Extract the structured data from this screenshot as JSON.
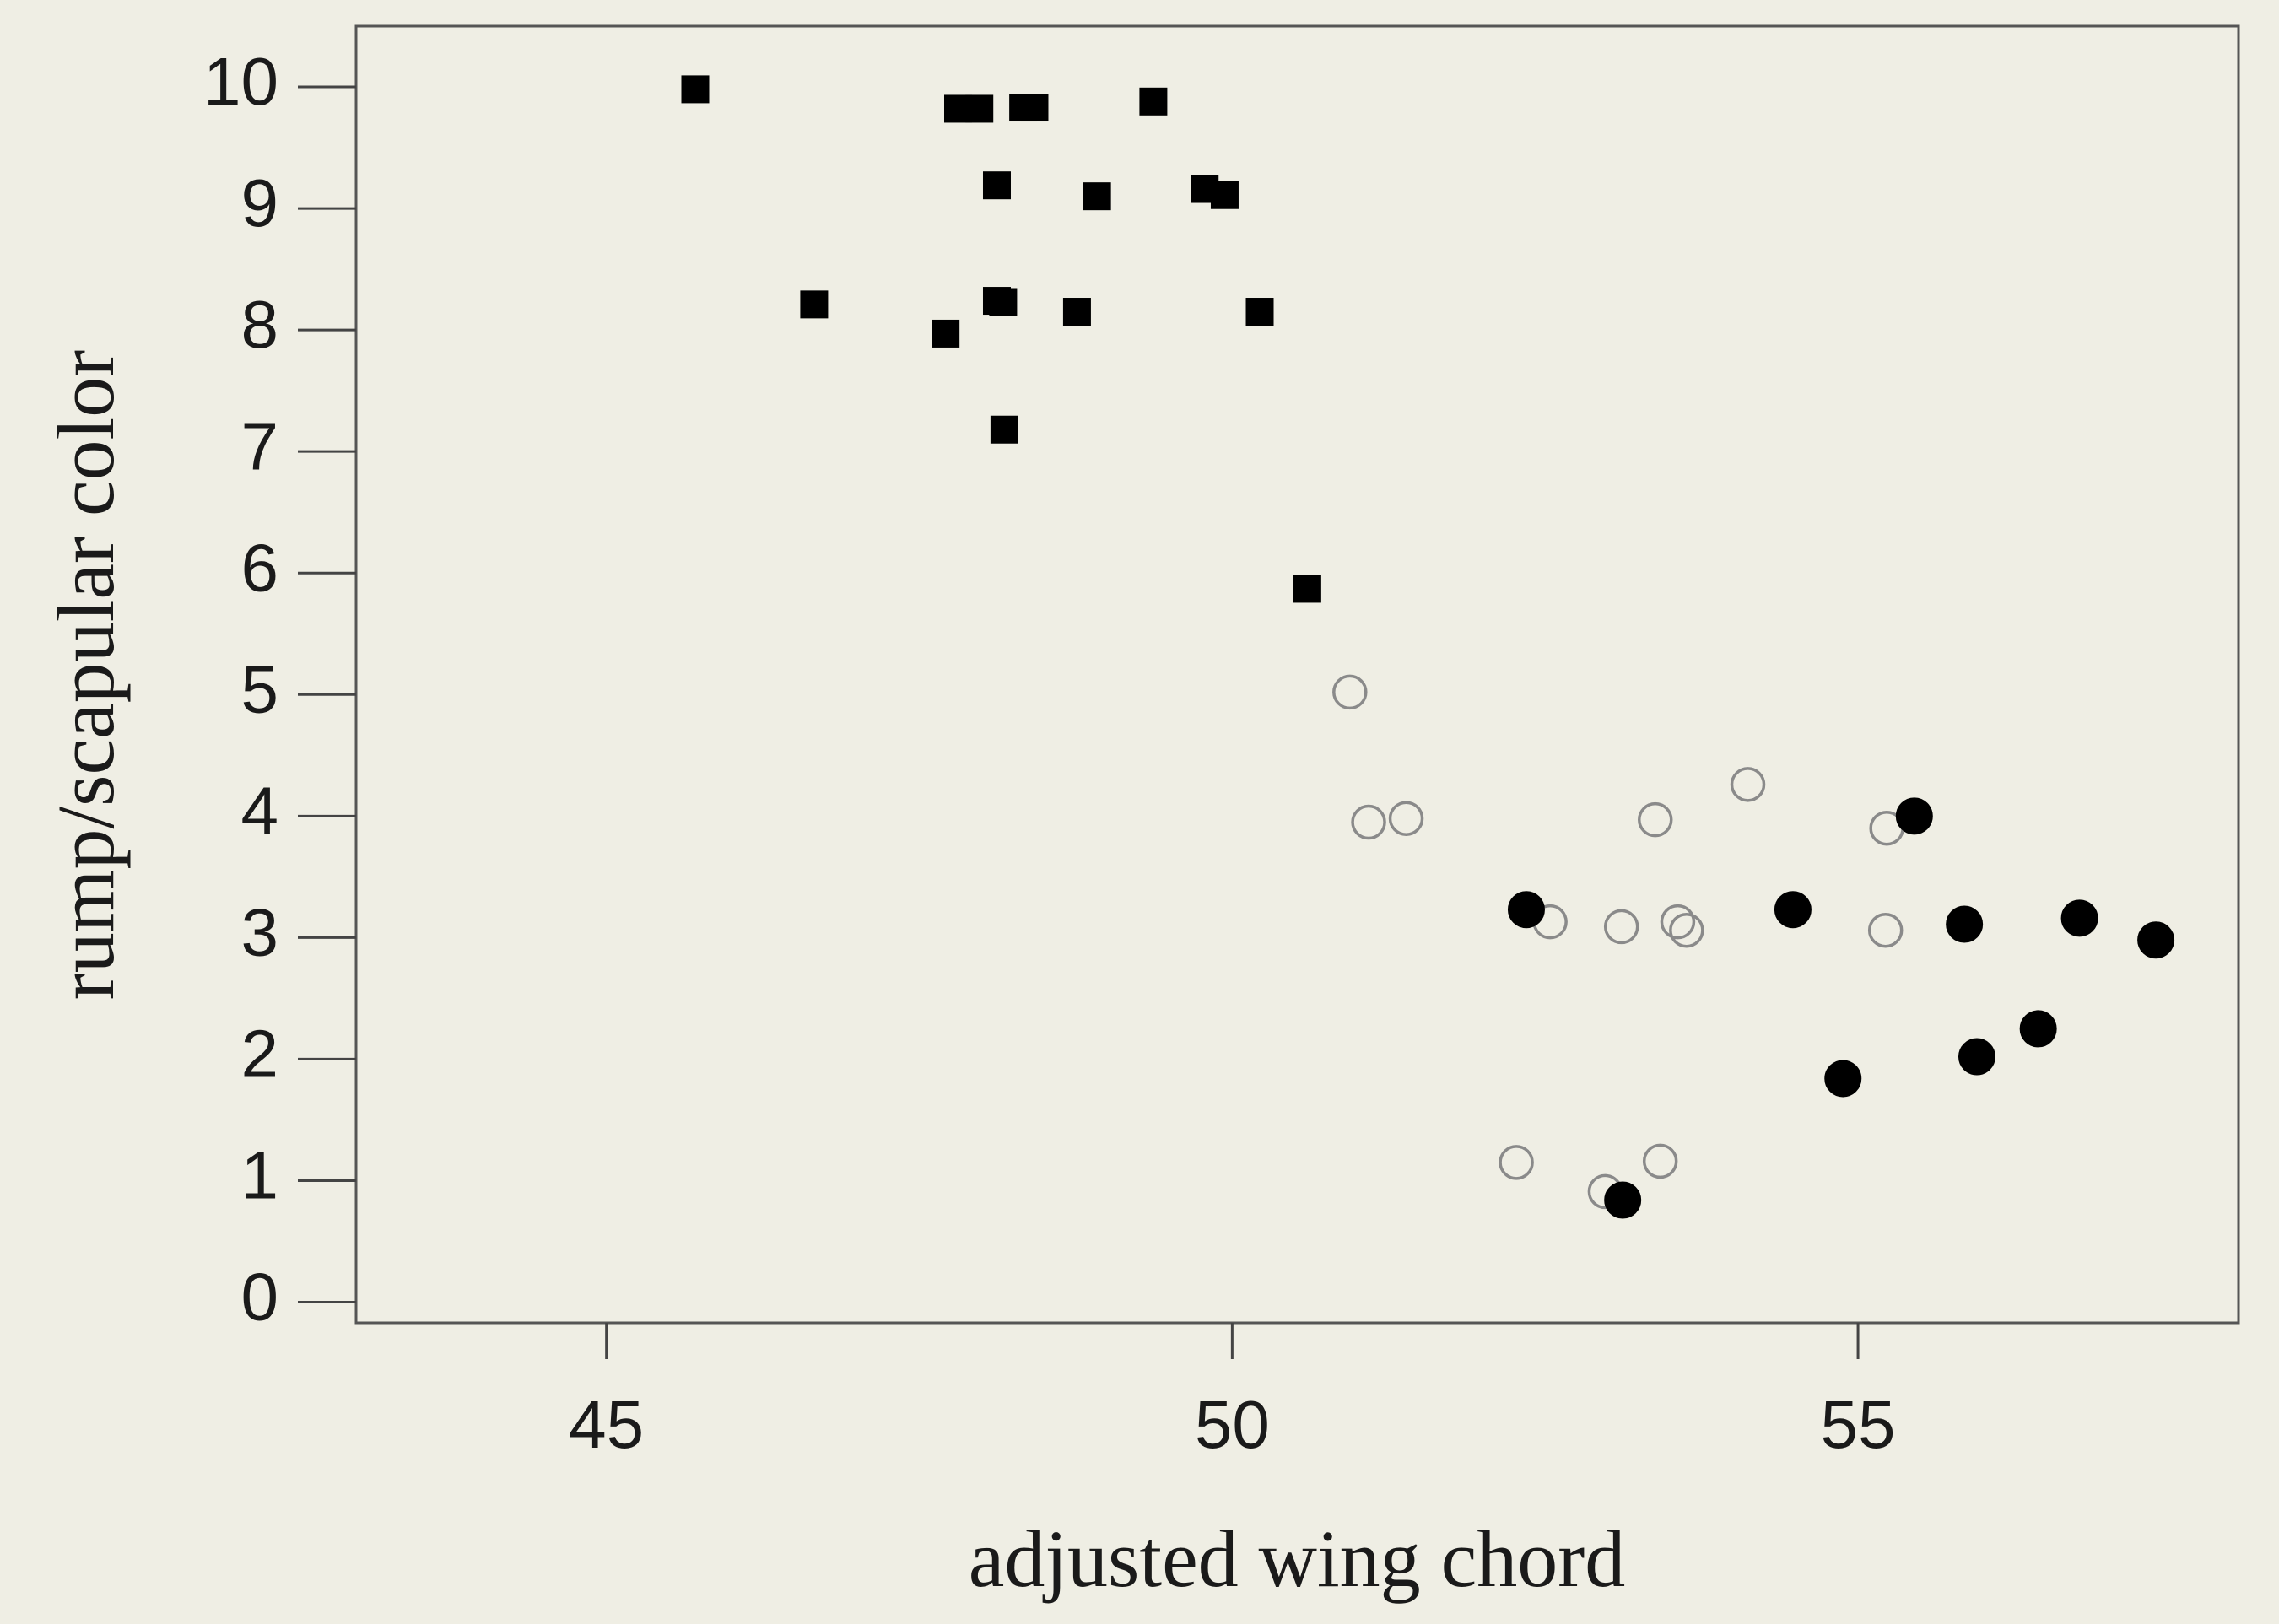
{
  "chart_data": {
    "type": "scatter",
    "xlabel": "adjusted wing chord",
    "ylabel": "rump/scapular color",
    "xlim": [
      43,
      58.04
    ],
    "ylim": [
      -0.17,
      10.5
    ],
    "xticks": [
      45,
      50,
      55
    ],
    "yticks": [
      0,
      1,
      2,
      3,
      4,
      5,
      6,
      7,
      8,
      9,
      10
    ],
    "series": [
      {
        "marker": "square",
        "color": "#000000",
        "filled": true,
        "x": [
          45.71,
          46.66,
          47.71,
          47.81,
          47.98,
          48.12,
          48.12,
          48.17,
          48.18,
          48.33,
          48.42,
          48.76,
          48.92,
          49.37,
          49.78,
          49.94,
          50.22,
          50.6
        ],
        "values": [
          9.98,
          8.21,
          7.97,
          9.82,
          9.82,
          9.19,
          8.24,
          8.23,
          7.18,
          9.83,
          9.83,
          8.15,
          9.1,
          9.88,
          9.16,
          9.11,
          8.15,
          5.87
        ]
      },
      {
        "marker": "circle",
        "color": "#8a8a8a",
        "filled": false,
        "x": [
          50.94,
          51.09,
          51.39,
          52.27,
          52.54,
          52.98,
          53.11,
          53.38,
          53.42,
          53.56,
          53.63,
          54.12,
          55.23,
          55.22
        ],
        "values": [
          5.02,
          3.95,
          3.98,
          1.15,
          3.13,
          0.91,
          3.09,
          3.97,
          1.16,
          3.13,
          3.06,
          4.26,
          3.9,
          3.06
        ]
      },
      {
        "marker": "circle",
        "color": "#000000",
        "filled": true,
        "x": [
          52.35,
          53.12,
          54.48,
          54.88,
          55.45,
          55.85,
          55.95,
          56.44,
          56.77,
          57.38
        ],
        "values": [
          3.23,
          0.84,
          3.23,
          1.84,
          4.0,
          3.11,
          2.02,
          2.25,
          3.16,
          2.98
        ]
      }
    ]
  }
}
